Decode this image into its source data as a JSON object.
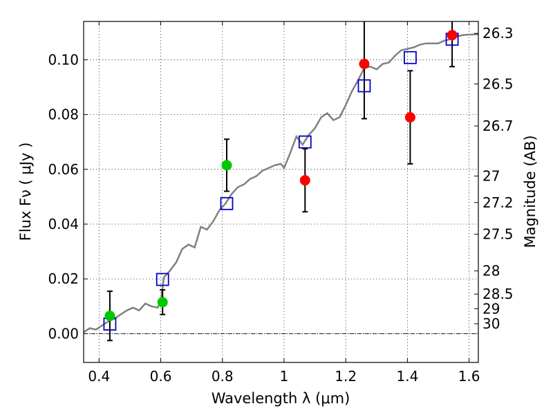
{
  "chart_data": {
    "type": "scatter",
    "xlabel": "Wavelength  λ (μm)",
    "ylabel": "Flux  Fν  ( μJy )",
    "y2label": "Magnitude (AB)",
    "xlim": [
      0.35,
      1.63
    ],
    "ylim": [
      -0.0105,
      0.114
    ],
    "x_ticks": [
      {
        "value": 0.4,
        "label": "0.4"
      },
      {
        "value": 0.6,
        "label": "0.6"
      },
      {
        "value": 0.8,
        "label": "0.8"
      },
      {
        "value": 1.0,
        "label": "1"
      },
      {
        "value": 1.2,
        "label": "1.2"
      },
      {
        "value": 1.4,
        "label": "1.4"
      },
      {
        "value": 1.6,
        "label": "1.6"
      }
    ],
    "y_ticks": [
      {
        "value": 0.0,
        "label": "0.00"
      },
      {
        "value": 0.02,
        "label": "0.02"
      },
      {
        "value": 0.04,
        "label": "0.04"
      },
      {
        "value": 0.06,
        "label": "0.06"
      },
      {
        "value": 0.08,
        "label": "0.08"
      },
      {
        "value": 0.1,
        "label": "0.10"
      }
    ],
    "y2_ticks": [
      {
        "mag": 26.3,
        "label": "26.3"
      },
      {
        "mag": 26.5,
        "label": "26.5"
      },
      {
        "mag": 26.7,
        "label": "26.7"
      },
      {
        "mag": 27.0,
        "label": "27"
      },
      {
        "mag": 27.2,
        "label": "27.2"
      },
      {
        "mag": 27.5,
        "label": "27.5"
      },
      {
        "mag": 28.0,
        "label": "28"
      },
      {
        "mag": 28.5,
        "label": "28.5"
      },
      {
        "mag": 29.0,
        "label": "29"
      },
      {
        "mag": 30.0,
        "label": "30"
      }
    ],
    "grid": true,
    "model_sed": {
      "color": "#808080",
      "x": [
        0.35,
        0.37,
        0.39,
        0.41,
        0.43,
        0.45,
        0.47,
        0.49,
        0.51,
        0.53,
        0.55,
        0.57,
        0.59,
        0.6,
        0.61,
        0.63,
        0.65,
        0.67,
        0.69,
        0.71,
        0.73,
        0.75,
        0.77,
        0.79,
        0.81,
        0.83,
        0.85,
        0.87,
        0.89,
        0.91,
        0.93,
        0.95,
        0.97,
        0.99,
        1.0,
        1.02,
        1.04,
        1.06,
        1.08,
        1.1,
        1.12,
        1.14,
        1.16,
        1.18,
        1.2,
        1.22,
        1.24,
        1.26,
        1.28,
        1.3,
        1.32,
        1.34,
        1.36,
        1.38,
        1.4,
        1.42,
        1.44,
        1.46,
        1.48,
        1.5,
        1.52,
        1.54,
        1.56,
        1.58,
        1.6,
        1.63
      ],
      "y": [
        0.0005,
        0.002,
        0.0015,
        0.003,
        0.0045,
        0.0055,
        0.007,
        0.0085,
        0.0095,
        0.0085,
        0.011,
        0.01,
        0.0095,
        0.0115,
        0.0205,
        0.023,
        0.026,
        0.031,
        0.0325,
        0.0315,
        0.039,
        0.038,
        0.041,
        0.045,
        0.0475,
        0.051,
        0.0535,
        0.0545,
        0.0565,
        0.0575,
        0.0595,
        0.0605,
        0.0615,
        0.062,
        0.0605,
        0.066,
        0.072,
        0.069,
        0.0725,
        0.075,
        0.079,
        0.0805,
        0.078,
        0.079,
        0.0835,
        0.0885,
        0.0925,
        0.097,
        0.0975,
        0.0965,
        0.0985,
        0.099,
        0.1015,
        0.1035,
        0.104,
        0.1045,
        0.1055,
        0.106,
        0.106,
        0.106,
        0.107,
        0.1075,
        0.1085,
        0.109,
        0.1092,
        0.1093
      ]
    },
    "series": [
      {
        "marker": "circle",
        "color": "#00c800",
        "points": [
          {
            "x": 0.435,
            "y": 0.0065,
            "err": 0.009
          },
          {
            "x": 0.606,
            "y": 0.0115,
            "err": 0.0045
          },
          {
            "x": 0.814,
            "y": 0.0615,
            "err": 0.0095
          }
        ]
      },
      {
        "marker": "circle",
        "color": "#ff0000",
        "points": [
          {
            "x": 1.068,
            "y": 0.056,
            "err": 0.0115
          },
          {
            "x": 1.26,
            "y": 0.0985,
            "err": 0.02
          },
          {
            "x": 1.409,
            "y": 0.079,
            "err": 0.017
          },
          {
            "x": 1.545,
            "y": 0.109,
            "err": 0.0115
          }
        ]
      },
      {
        "marker": "square",
        "color": "#0000cc",
        "points": [
          {
            "x": 0.435,
            "y": 0.0035
          },
          {
            "x": 0.606,
            "y": 0.0198
          },
          {
            "x": 0.814,
            "y": 0.0475
          },
          {
            "x": 1.068,
            "y": 0.07
          },
          {
            "x": 1.26,
            "y": 0.0905
          },
          {
            "x": 1.409,
            "y": 0.1008
          },
          {
            "x": 1.545,
            "y": 0.1075
          }
        ]
      }
    ]
  }
}
